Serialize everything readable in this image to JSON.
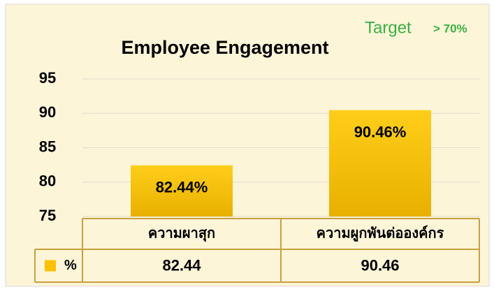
{
  "chart_data": {
    "type": "bar",
    "title": "Employee Engagement",
    "annotation": {
      "label": "Target",
      "value": "> 70%"
    },
    "categories": [
      "ความผาสุก",
      "ความผูกพันต่อองค์กร"
    ],
    "series": [
      {
        "name": "%",
        "color": "#ffc000",
        "values": [
          82.44,
          90.46
        ],
        "value_labels": [
          "82.44%",
          "90.46%"
        ]
      }
    ],
    "ylim": [
      75,
      95
    ],
    "yticks": [
      75,
      80,
      85,
      90,
      95
    ],
    "grid": true,
    "data_table": true
  }
}
